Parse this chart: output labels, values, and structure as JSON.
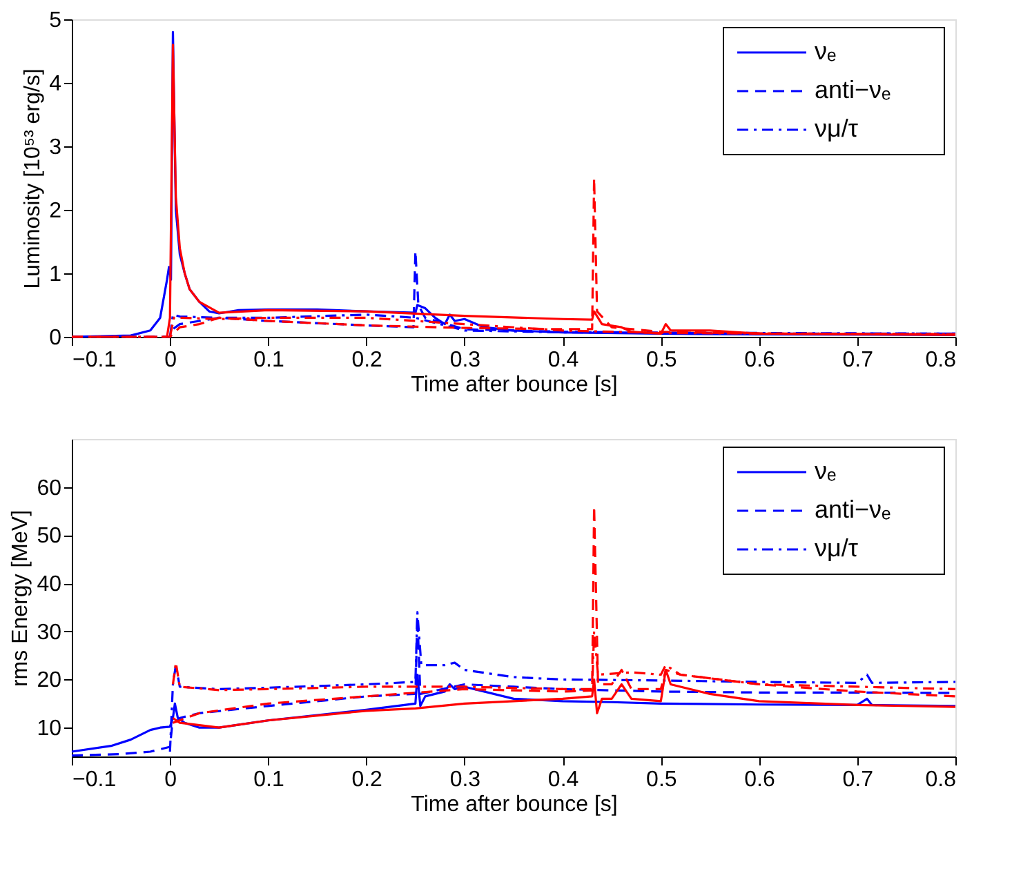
{
  "chart_data": [
    {
      "type": "line",
      "xlabel": "Time after bounce [s]",
      "ylabel": "Luminosity [10⁵³ erg/s]",
      "xlim": [
        -0.1,
        0.8
      ],
      "xticks": [
        -0.1,
        0,
        0.1,
        0.2,
        0.3,
        0.4,
        0.5,
        0.6,
        0.7,
        0.8
      ],
      "ylim": [
        0,
        5
      ],
      "yticks": [
        0,
        1,
        2,
        3,
        4,
        5
      ],
      "grid": false,
      "legend": "top right",
      "series": [
        {
          "name": "νₑ",
          "color": "#0000ff",
          "line_style": "solid",
          "x": [
            -0.1,
            -0.04,
            -0.02,
            -0.01,
            -0.003,
            -0.001,
            0.001,
            0.003,
            0.006,
            0.01,
            0.015,
            0.02,
            0.03,
            0.04,
            0.05,
            0.07,
            0.1,
            0.15,
            0.2,
            0.25,
            0.252,
            0.26,
            0.27,
            0.28,
            0.285,
            0.29,
            0.3,
            0.32,
            0.35,
            0.4,
            0.5,
            0.6,
            0.8
          ],
          "values": [
            0,
            0.02,
            0.1,
            0.3,
            0.9,
            1.1,
            0.9,
            4.8,
            2.0,
            1.3,
            1.0,
            0.75,
            0.55,
            0.4,
            0.37,
            0.42,
            0.43,
            0.43,
            0.4,
            0.38,
            0.5,
            0.45,
            0.3,
            0.2,
            0.35,
            0.25,
            0.28,
            0.15,
            0.1,
            0.07,
            0.05,
            0.04,
            0.03
          ]
        },
        {
          "name": "anti−νₑ",
          "color": "#0000ff",
          "line_style": "dashed",
          "x": [
            -0.1,
            0,
            0.001,
            0.01,
            0.03,
            0.05,
            0.1,
            0.2,
            0.248,
            0.25,
            0.253,
            0.26,
            0.3,
            0.4,
            0.6,
            0.8
          ],
          "values": [
            0,
            0,
            0.1,
            0.2,
            0.25,
            0.3,
            0.25,
            0.18,
            0.15,
            1.35,
            0.5,
            0.3,
            0.12,
            0.08,
            0.05,
            0.05
          ]
        },
        {
          "name": "νμ/τ",
          "color": "#0000ff",
          "line_style": "dashdot",
          "x": [
            -0.1,
            0,
            0.003,
            0.01,
            0.05,
            0.1,
            0.2,
            0.25,
            0.3,
            0.4,
            0.8
          ],
          "values": [
            0,
            0,
            0.35,
            0.32,
            0.3,
            0.3,
            0.35,
            0.3,
            0.1,
            0.07,
            0.05
          ]
        },
        {
          "color": "#ff0000",
          "line_style": "solid",
          "x": [
            -0.003,
            0,
            0.003,
            0.006,
            0.01,
            0.015,
            0.02,
            0.03,
            0.05,
            0.1,
            0.2,
            0.3,
            0.4,
            0.43,
            0.432,
            0.44,
            0.46,
            0.47,
            0.5,
            0.505,
            0.51,
            0.55,
            0.6,
            0.8
          ],
          "values": [
            0,
            0.3,
            4.6,
            2.2,
            1.4,
            1.0,
            0.75,
            0.55,
            0.38,
            0.42,
            0.4,
            0.33,
            0.28,
            0.27,
            0.4,
            0.2,
            0.15,
            0.08,
            0.05,
            0.2,
            0.1,
            0.1,
            0.05,
            0.03
          ]
        },
        {
          "color": "#ff0000",
          "line_style": "dashed",
          "x": [
            -0.1,
            0,
            0.01,
            0.03,
            0.05,
            0.1,
            0.2,
            0.3,
            0.4,
            0.43,
            0.432,
            0.435,
            0.45,
            0.5,
            0.6,
            0.8
          ],
          "values": [
            0,
            0,
            0.15,
            0.2,
            0.3,
            0.25,
            0.18,
            0.14,
            0.12,
            0.12,
            2.5,
            0.4,
            0.15,
            0.08,
            0.05,
            0.04
          ]
        },
        {
          "color": "#ff0000",
          "line_style": "dashdot",
          "x": [
            -0.1,
            0,
            0.004,
            0.01,
            0.05,
            0.1,
            0.2,
            0.3,
            0.4,
            0.5,
            0.8
          ],
          "values": [
            0,
            0,
            0.3,
            0.3,
            0.28,
            0.3,
            0.3,
            0.2,
            0.1,
            0.06,
            0.04
          ]
        }
      ]
    },
    {
      "type": "line",
      "xlabel": "Time after bounce [s]",
      "ylabel": "rms Energy [MeV]",
      "xlim": [
        -0.1,
        0.8
      ],
      "xticks": [
        -0.1,
        0,
        0.1,
        0.2,
        0.3,
        0.4,
        0.5,
        0.6,
        0.7,
        0.8
      ],
      "ylim": [
        4,
        70
      ],
      "yticks": [
        10,
        20,
        30,
        40,
        50,
        60
      ],
      "grid": false,
      "legend": "top right",
      "series": [
        {
          "name": "νₑ",
          "color": "#0000ff",
          "line_style": "solid",
          "x": [
            -0.1,
            -0.06,
            -0.04,
            -0.02,
            -0.01,
            0,
            0.003,
            0.005,
            0.008,
            0.015,
            0.03,
            0.05,
            0.1,
            0.2,
            0.25,
            0.252,
            0.255,
            0.26,
            0.27,
            0.28,
            0.285,
            0.29,
            0.3,
            0.35,
            0.4,
            0.45,
            0.5,
            0.6,
            0.7,
            0.71,
            0.715,
            0.8
          ],
          "values": [
            5,
            6.2,
            7.5,
            9.5,
            10,
            10.2,
            12,
            15,
            12,
            11,
            10,
            10,
            11.5,
            13.7,
            15,
            21,
            14.5,
            16.5,
            17,
            17.5,
            19,
            18,
            18.5,
            16,
            15.5,
            15.3,
            15,
            14.8,
            14.7,
            16,
            14.7,
            14.5
          ]
        },
        {
          "name": "anti−νₑ",
          "color": "#0000ff",
          "line_style": "dashed",
          "x": [
            -0.1,
            -0.05,
            -0.02,
            0,
            0.002,
            0.01,
            0.03,
            0.1,
            0.2,
            0.25,
            0.252,
            0.255,
            0.3,
            0.35,
            0.4,
            0.5,
            0.6,
            0.7,
            0.8
          ],
          "values": [
            4.2,
            4.5,
            5,
            6,
            10,
            12,
            13,
            14.5,
            16.5,
            17,
            33,
            17,
            19,
            18.5,
            18,
            17.5,
            17.3,
            17.3,
            17.2
          ]
        },
        {
          "name": "νμ/τ",
          "color": "#0000ff",
          "line_style": "dashdot",
          "x": [
            0,
            0.003,
            0.006,
            0.01,
            0.05,
            0.1,
            0.2,
            0.25,
            0.252,
            0.256,
            0.28,
            0.29,
            0.3,
            0.35,
            0.4,
            0.5,
            0.6,
            0.7,
            0.71,
            0.715,
            0.8
          ],
          "values": [
            5,
            19,
            23,
            18.5,
            18,
            18.3,
            19,
            19.5,
            34,
            23,
            23,
            23.5,
            22,
            20.5,
            20,
            19.8,
            19.5,
            19.3,
            21,
            19.3,
            19.5
          ]
        },
        {
          "color": "#ff0000",
          "line_style": "solid",
          "x": [
            0.003,
            0.01,
            0.05,
            0.1,
            0.2,
            0.25,
            0.3,
            0.35,
            0.4,
            0.43,
            0.432,
            0.435,
            0.44,
            0.45,
            0.46,
            0.47,
            0.5,
            0.505,
            0.51,
            0.55,
            0.6,
            0.7,
            0.8
          ],
          "values": [
            12,
            11,
            10,
            11.5,
            13.5,
            14,
            15,
            15.5,
            16,
            16.5,
            20,
            13,
            16,
            16,
            19,
            16,
            15.5,
            22,
            19,
            17,
            15.5,
            14.7,
            14.3
          ]
        },
        {
          "color": "#ff0000",
          "line_style": "dashed",
          "x": [
            0.003,
            0.03,
            0.1,
            0.2,
            0.3,
            0.4,
            0.43,
            0.432,
            0.436,
            0.45,
            0.46,
            0.47,
            0.5,
            0.505,
            0.52,
            0.6,
            0.7,
            0.8
          ],
          "values": [
            11,
            13,
            15,
            16.5,
            18,
            17.5,
            17.7,
            56,
            19,
            19,
            22,
            18,
            18,
            22,
            21,
            19,
            17.5,
            16.5
          ]
        },
        {
          "color": "#ff0000",
          "line_style": "dashdot",
          "x": [
            0.003,
            0.006,
            0.01,
            0.05,
            0.1,
            0.2,
            0.3,
            0.4,
            0.43,
            0.432,
            0.436,
            0.47,
            0.5,
            0.505,
            0.52,
            0.6,
            0.7,
            0.8
          ],
          "values": [
            19,
            23.5,
            18.5,
            17.8,
            18,
            18.5,
            18.5,
            18,
            18,
            30,
            21,
            21.5,
            21,
            23,
            21,
            19,
            18.5,
            18
          ]
        }
      ]
    }
  ]
}
